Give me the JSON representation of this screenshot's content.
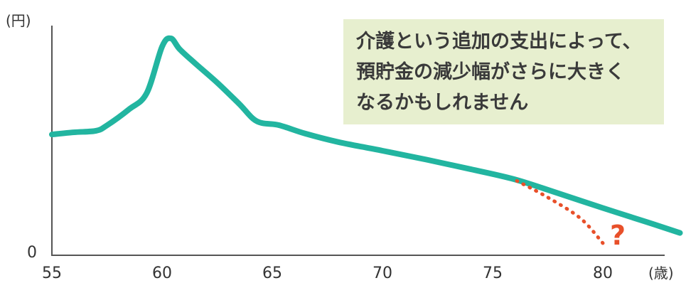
{
  "chart_data": {
    "type": "line",
    "y_unit_label": "(円)",
    "x_unit_label": "(歳)",
    "y_zero_label": "0",
    "xlim": [
      55,
      83.5
    ],
    "ylim": [
      0,
      100
    ],
    "x_ticks": [
      55,
      60,
      65,
      70,
      75,
      80
    ],
    "grid": false,
    "line_color": "#22b5a0",
    "projection_color": "#e8502a",
    "series": [
      {
        "x": [
          55,
          56,
          57,
          57.5,
          58.5,
          59.3,
          60,
          60.4,
          60.8,
          61.5,
          62.5,
          63.5,
          64.3,
          65.3,
          66.5,
          68,
          70,
          72,
          74,
          76,
          78,
          80,
          82,
          83.5
        ],
        "y": [
          55.7,
          56.7,
          57.4,
          59.9,
          67.3,
          74.7,
          96.2,
          100,
          95,
          88.5,
          79.6,
          69.8,
          61.8,
          60,
          56.1,
          52.2,
          48.2,
          44.1,
          39.7,
          35,
          28.5,
          21.8,
          15.3,
          10.3
        ]
      },
      {
        "projection": true,
        "x": [
          76.1,
          77.5,
          79,
          80
        ],
        "y": [
          34.3,
          26.7,
          16.9,
          5.6
        ]
      }
    ],
    "annotation_mark": "?"
  },
  "note": {
    "lines": [
      "介護という追加の支出によって、",
      "預貯金の減少幅がさらに大きく",
      "なるかもしれません"
    ]
  }
}
